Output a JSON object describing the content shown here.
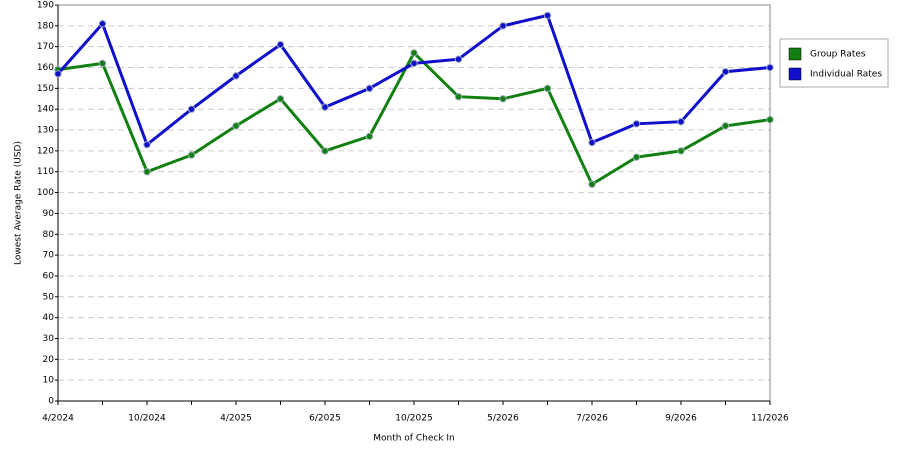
{
  "chart_data": {
    "type": "line",
    "x_label": "Month of Check In",
    "y_label": "Lowest Average Rate (USD)",
    "categories": [
      "4/2024",
      null,
      "10/2024",
      null,
      "4/2025",
      null,
      "6/2025",
      null,
      "10/2025",
      null,
      "5/2026",
      null,
      "7/2026",
      null,
      "9/2026",
      null,
      "11/2026"
    ],
    "series": [
      {
        "name": "Group Rates",
        "color": "#118011",
        "values": [
          159,
          162,
          110,
          118,
          132,
          145,
          120,
          127,
          167,
          146,
          145,
          150,
          104,
          117,
          120,
          132,
          135
        ]
      },
      {
        "name": "Individual Rates",
        "color": "#0f0fcc",
        "values": [
          157,
          181,
          123,
          140,
          156,
          171,
          141,
          150,
          162,
          164,
          180,
          185,
          124,
          133,
          134,
          158,
          160
        ]
      }
    ],
    "ylim": [
      0,
      190
    ],
    "yticks": [
      0,
      10,
      20,
      30,
      40,
      50,
      60,
      70,
      80,
      90,
      100,
      110,
      120,
      130,
      140,
      150,
      160,
      170,
      180,
      190
    ],
    "grid": true,
    "legend": "right"
  }
}
